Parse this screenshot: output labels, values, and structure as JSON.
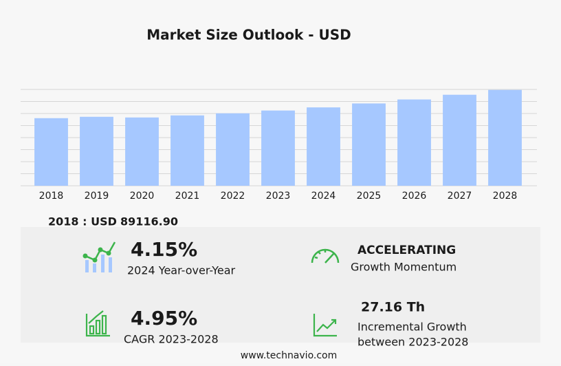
{
  "chart_data": {
    "type": "bar",
    "title": "Market Size Outlook  - USD",
    "categories": [
      "2018",
      "2019",
      "2020",
      "2021",
      "2022",
      "2023",
      "2024",
      "2025",
      "2026",
      "2027",
      "2028"
    ],
    "values": [
      89116.9,
      90940,
      90030,
      92760,
      95490,
      99200,
      103320,
      108500,
      113800,
      120000,
      126360
    ],
    "color": "#a6c8ff",
    "ylim": [
      0,
      127000
    ],
    "grid": true
  },
  "highlight": {
    "label": "2018 : USD",
    "value": "89116.90"
  },
  "kpis": [
    {
      "value": "4.15%",
      "label": "2024 Year-over-Year"
    },
    {
      "value": "ACCELERATING",
      "label": "Growth Momentum"
    },
    {
      "value": "4.95%",
      "label": "CAGR 2023-2028"
    },
    {
      "value": "27.16 Th",
      "label": "Incremental Growth",
      "label2": "between 2023-2028"
    }
  ],
  "footer": "www.technavio.com"
}
